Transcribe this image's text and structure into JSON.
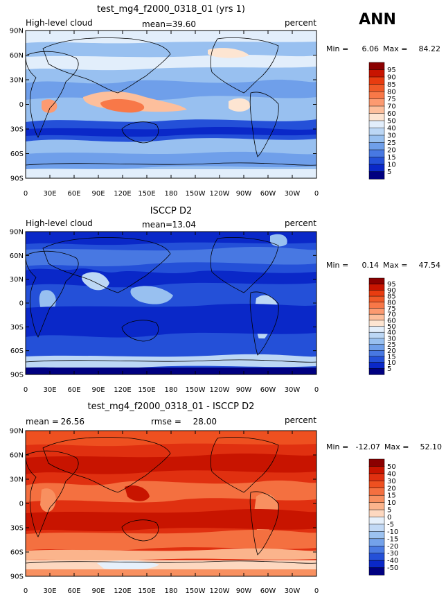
{
  "season": "ANN",
  "longitude_ticks": [
    "0",
    "30E",
    "60E",
    "90E",
    "120E",
    "150E",
    "180",
    "150W",
    "120W",
    "90W",
    "60W",
    "30W",
    "0"
  ],
  "latitude_ticks": [
    "90N",
    "60N",
    "30N",
    "0",
    "30S",
    "60S",
    "90S"
  ],
  "chart_data": [
    {
      "type": "heatmap",
      "title": "test_mg4_f2000_0318_01 (yrs 1)",
      "variable": "High-level cloud",
      "units": "percent",
      "mean_label": "mean=",
      "mean": "39.60",
      "min_label": "Min =",
      "min": "6.06",
      "max_label": "Max =",
      "max": "84.22",
      "colorbar_levels": [
        "95",
        "90",
        "85",
        "80",
        "75",
        "70",
        "60",
        "50",
        "40",
        "30",
        "25",
        "20",
        "15",
        "10",
        "5"
      ],
      "colorbar_colors": [
        "#8b0000",
        "#c81400",
        "#e83c10",
        "#f05a28",
        "#f87848",
        "#fc9a70",
        "#fdbf9c",
        "#fde5d2",
        "#e2eefb",
        "#bcd7f5",
        "#98c0f0",
        "#6f9fea",
        "#4878e2",
        "#2450d8",
        "#0a28c8",
        "#000080"
      ],
      "x_range": [
        0,
        360
      ],
      "y_range": [
        -90,
        90
      ],
      "field_description": "zonal bands of high cloud"
    },
    {
      "type": "heatmap",
      "title": "ISCCP D2",
      "variable": "High-level cloud",
      "units": "percent",
      "mean_label": "mean=",
      "mean": "13.04",
      "min_label": "Min =",
      "min": "0.14",
      "max_label": "Max =",
      "max": "47.54",
      "colorbar_levels": [
        "95",
        "90",
        "85",
        "80",
        "75",
        "70",
        "60",
        "50",
        "40",
        "30",
        "25",
        "20",
        "15",
        "10",
        "5"
      ],
      "colorbar_colors": [
        "#8b0000",
        "#c81400",
        "#e83c10",
        "#f05a28",
        "#f87848",
        "#fc9a70",
        "#fdbf9c",
        "#fde5d2",
        "#e2eefb",
        "#bcd7f5",
        "#98c0f0",
        "#6f9fea",
        "#4878e2",
        "#2450d8",
        "#0a28c8",
        "#000080"
      ],
      "x_range": [
        0,
        360
      ],
      "y_range": [
        -90,
        90
      ]
    },
    {
      "type": "heatmap",
      "title": "test_mg4_f2000_0318_01 - ISCCP D2",
      "units": "percent",
      "mean_label": "mean =",
      "mean": "26.56",
      "rmse_label": "rmse =",
      "rmse": "28.00",
      "min_label": "Min =",
      "min": "-12.07",
      "max_label": "Max =",
      "max": "52.10",
      "colorbar_levels": [
        "50",
        "40",
        "30",
        "20",
        "15",
        "10",
        "5",
        "0",
        "-5",
        "-10",
        "-15",
        "-20",
        "-30",
        "-40",
        "-50"
      ],
      "colorbar_colors": [
        "#8b0000",
        "#c81400",
        "#e03010",
        "#ee5020",
        "#f47040",
        "#f89060",
        "#fbb48c",
        "#fdd8c0",
        "#e6f0fb",
        "#c2d9f5",
        "#9cc2f0",
        "#74a2ea",
        "#4a7ae2",
        "#2450d8",
        "#0a28c8",
        "#000080"
      ],
      "x_range": [
        0,
        360
      ],
      "y_range": [
        -90,
        90
      ]
    }
  ]
}
